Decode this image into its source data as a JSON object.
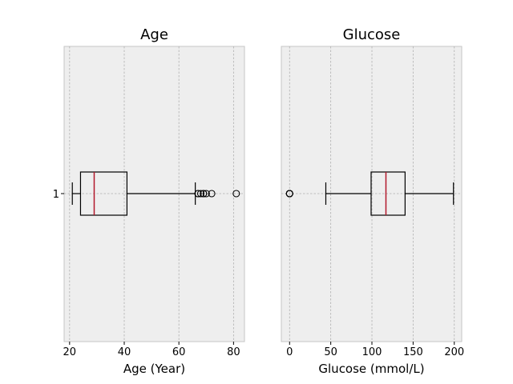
{
  "chart_data": [
    {
      "type": "boxplot",
      "title": "Age",
      "xlabel": "Age (Year)",
      "xlim": [
        18,
        84
      ],
      "xticks": [
        20,
        40,
        60,
        80
      ],
      "category": "1",
      "box": {
        "whisker_low": 21,
        "q1": 24,
        "median": 29,
        "q3": 41,
        "whisker_high": 66
      },
      "fliers": [
        67,
        67,
        68,
        69,
        69,
        70,
        72,
        81
      ],
      "grid": true
    },
    {
      "type": "boxplot",
      "title": "Glucose",
      "xlabel": "Glucose (mmol/L)",
      "xlim": [
        -10,
        209
      ],
      "xticks": [
        0,
        50,
        100,
        150,
        200
      ],
      "category": "1",
      "box": {
        "whisker_low": 44,
        "q1": 99,
        "median": 117,
        "q3": 140.25,
        "whisker_high": 199
      },
      "fliers": [
        0,
        0,
        0,
        0,
        0
      ],
      "grid": true
    }
  ],
  "colors": {
    "median": "#b2182b",
    "panel_bg": "#eeeeee",
    "grid": "#b0b0b0"
  }
}
